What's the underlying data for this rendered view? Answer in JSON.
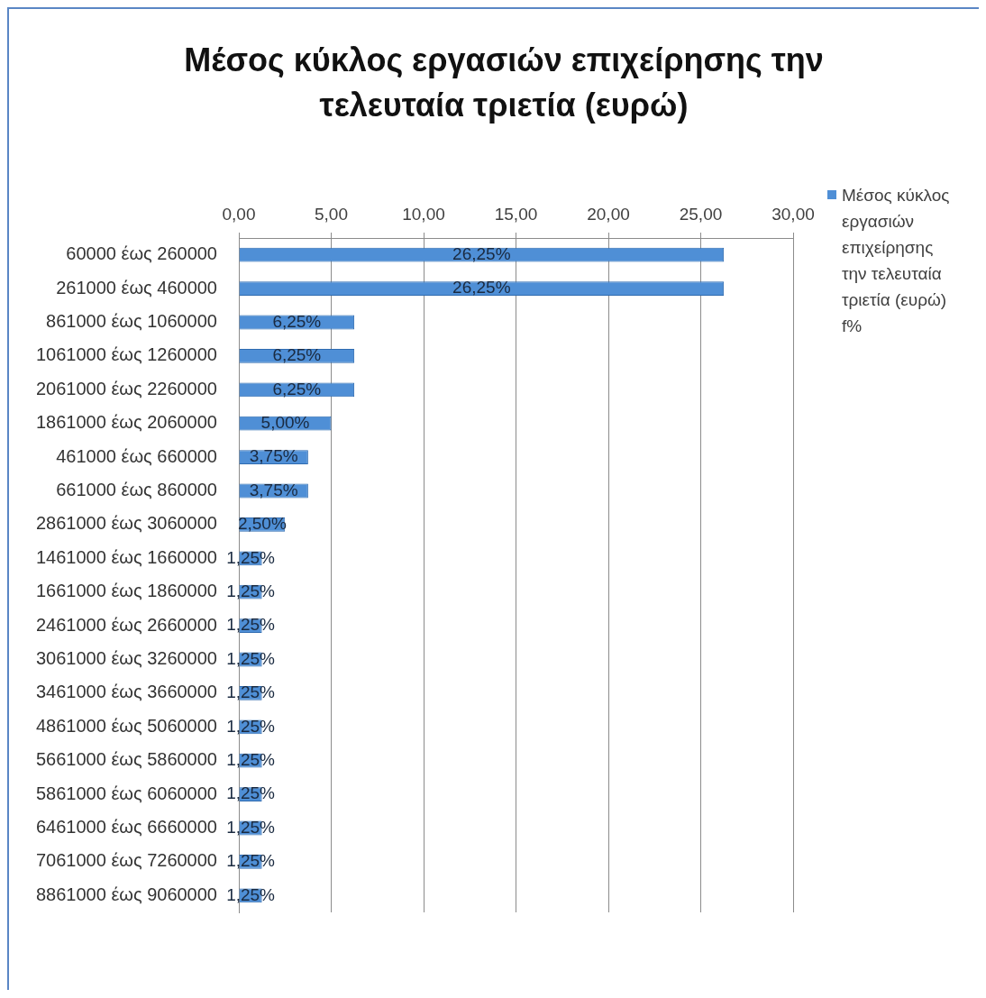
{
  "chart_data": {
    "type": "bar",
    "orientation": "horizontal",
    "title": "Μέσος κύκλος εργασιών επιχείρησης την τελευταία τριετία (ευρώ)",
    "categories": [
      "60000 έως 260000",
      "261000 έως 460000",
      "861000 έως 1060000",
      "1061000 έως 1260000",
      "2061000 έως 2260000",
      "1861000 έως 2060000",
      "461000 έως 660000",
      "661000 έως 860000",
      "2861000 έως 3060000",
      "1461000 έως 1660000",
      "1661000 έως 1860000",
      "2461000 έως 2660000",
      "3061000 έως 3260000",
      "3461000 έως 3660000",
      "4861000 έως 5060000",
      "5661000 έως 5860000",
      "5861000 έως 6060000",
      "6461000 έως 6660000",
      "7061000 έως 7260000",
      "8861000 έως 9060000"
    ],
    "series": [
      {
        "name": "Μέσος κύκλος εργασιών επιχείρησης την τελευταία τριετία (ευρώ) f%",
        "color": "#4f8fd6",
        "values": [
          26.25,
          26.25,
          6.25,
          6.25,
          6.25,
          5.0,
          3.75,
          3.75,
          2.5,
          1.25,
          1.25,
          1.25,
          1.25,
          1.25,
          1.25,
          1.25,
          1.25,
          1.25,
          1.25,
          1.25
        ],
        "value_labels": [
          "26,25%",
          "26,25%",
          "6,25%",
          "6,25%",
          "6,25%",
          "5,00%",
          "3,75%",
          "3,75%",
          "2,50%",
          "1,25%",
          "1,25%",
          "1,25%",
          "1,25%",
          "1,25%",
          "1,25%",
          "1,25%",
          "1,25%",
          "1,25%",
          "1,25%",
          "1,25%"
        ]
      }
    ],
    "xlim": [
      0,
      30
    ],
    "xticks": [
      {
        "value": 0,
        "label": "0,00"
      },
      {
        "value": 5,
        "label": "5,00"
      },
      {
        "value": 10,
        "label": "10,00"
      },
      {
        "value": 15,
        "label": "15,00"
      },
      {
        "value": 20,
        "label": "20,00"
      },
      {
        "value": 25,
        "label": "25,00"
      },
      {
        "value": 30,
        "label": "30,00"
      }
    ],
    "grid": "x",
    "legend": "top right"
  }
}
